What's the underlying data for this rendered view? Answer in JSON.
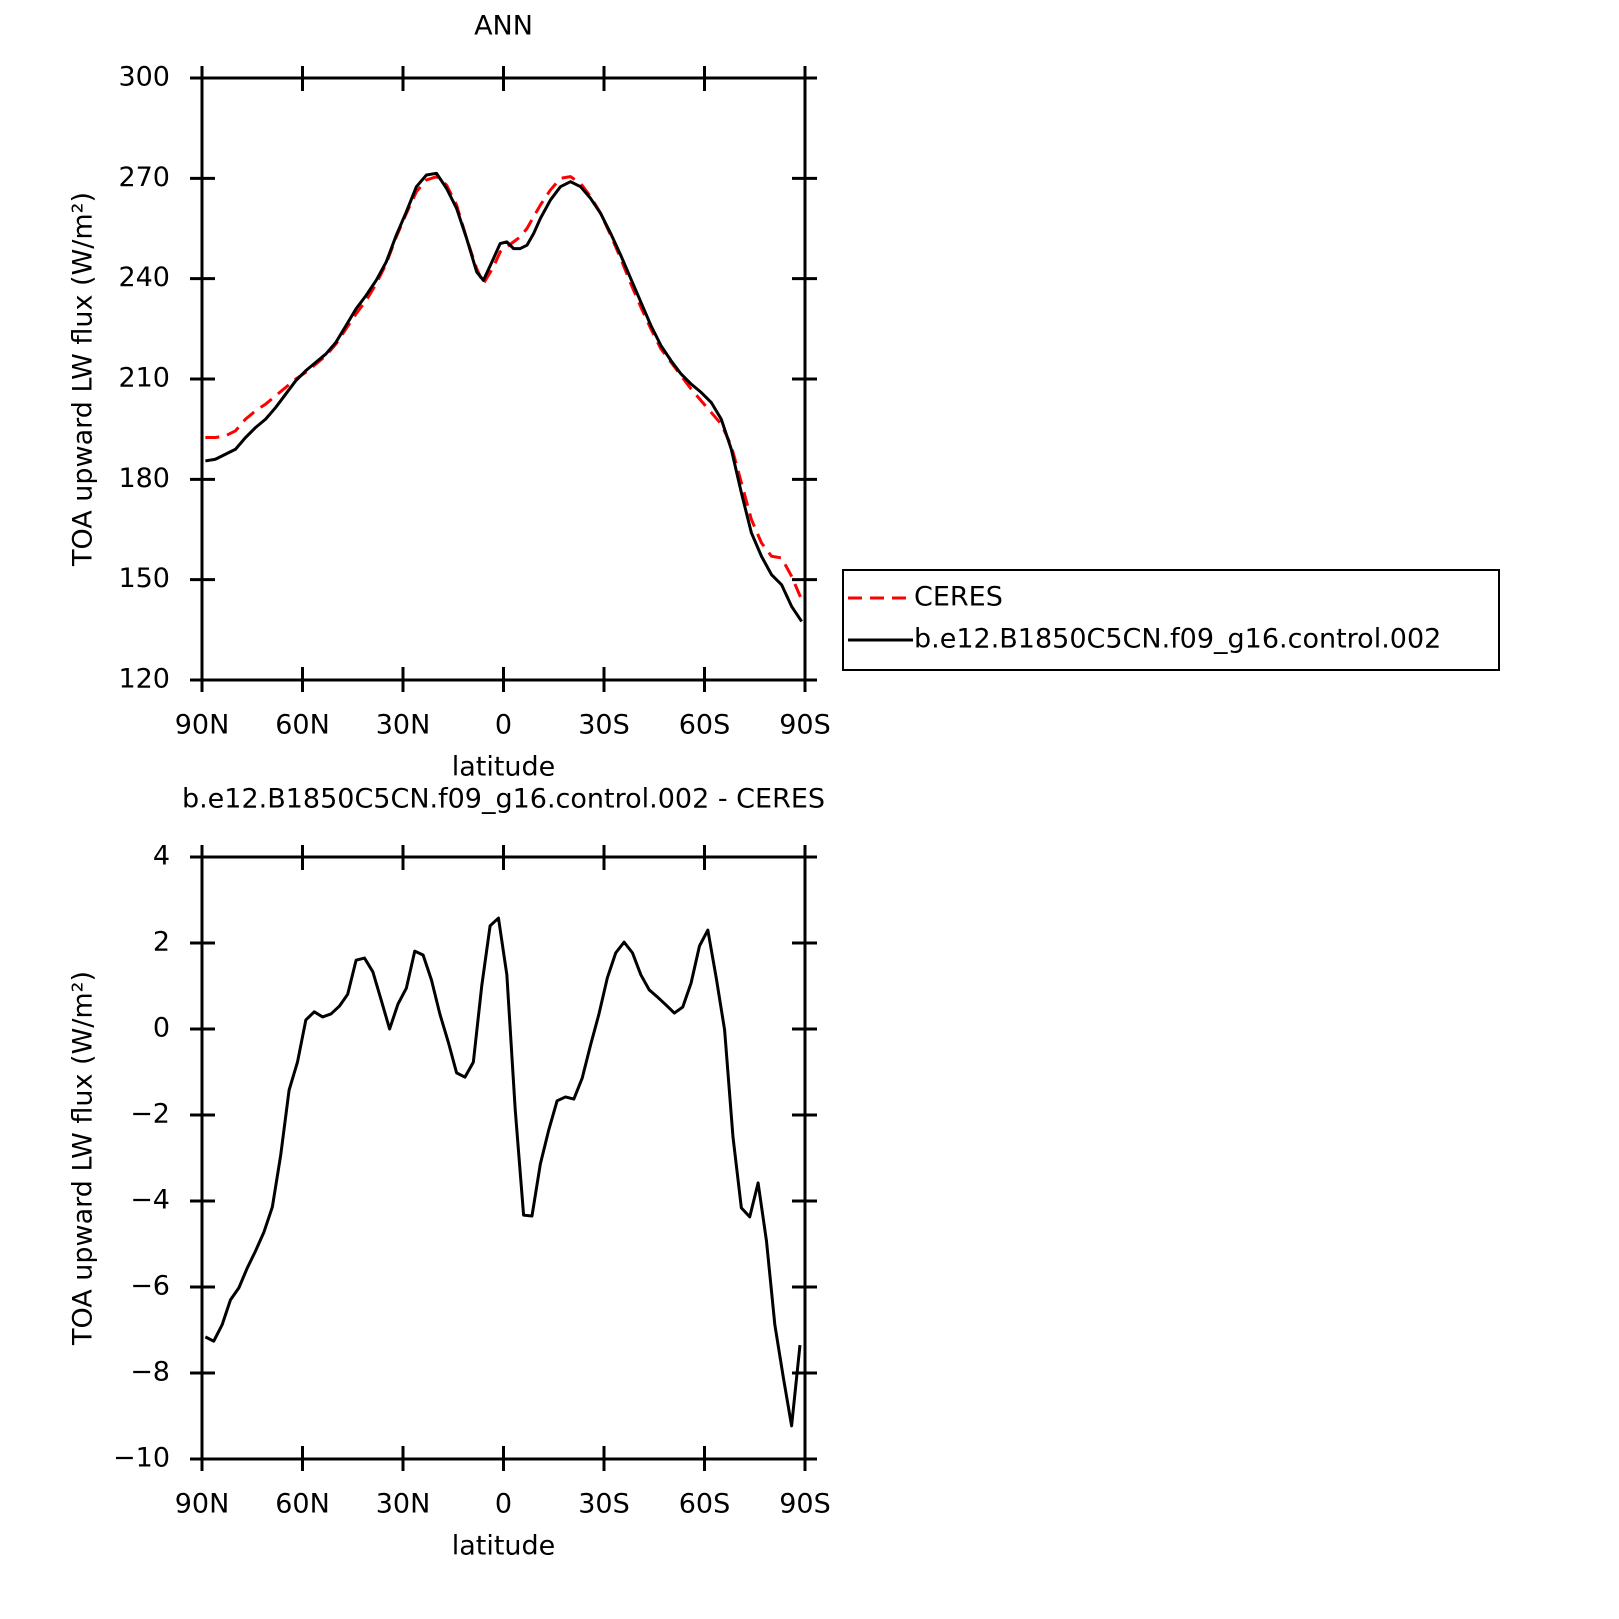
{
  "chart_data": [
    {
      "type": "line",
      "title": "ANN",
      "xlabel": "latitude",
      "ylabel": "TOA upward LW flux (W/m²)",
      "x": [
        89,
        86,
        83,
        80,
        77,
        74,
        71,
        68,
        65,
        62,
        59,
        56,
        53,
        50,
        47,
        44,
        41,
        38,
        35,
        32,
        29,
        26,
        23,
        20,
        17,
        14,
        11,
        8,
        6,
        3,
        1,
        -1,
        -3,
        -5,
        -7,
        -9,
        -11,
        -14,
        -17,
        -20,
        -23,
        -26,
        -29,
        -32,
        -35,
        -38,
        -41,
        -44,
        -47,
        -50,
        -53,
        -56,
        -59,
        -62,
        -65,
        -68,
        -71,
        -74,
        -77,
        -80,
        -83,
        -86,
        -89
      ],
      "series": [
        {
          "name": "CERES",
          "color": "#ff0000",
          "line_style": "dashed",
          "values": [
            192.5,
            192.5,
            193,
            194.5,
            198,
            200.5,
            202.5,
            205,
            207.5,
            210,
            212,
            214.5,
            217,
            220.5,
            225,
            229.5,
            233.5,
            238.5,
            244.5,
            252.5,
            259.5,
            266,
            269.5,
            270.5,
            268,
            262,
            252,
            243,
            238.5,
            243.5,
            248,
            249.5,
            251,
            252.5,
            255,
            258.5,
            262,
            266.5,
            270,
            270.5,
            268.5,
            264.5,
            259.5,
            253,
            246,
            238.5,
            231.5,
            225,
            219,
            215,
            211,
            207,
            203.5,
            200,
            196.5,
            190,
            179,
            168,
            161,
            157,
            156.5,
            151,
            144
          ]
        },
        {
          "name": "b.e12.B1850C5CN.f09_g16.control.002",
          "color": "#000000",
          "line_style": "solid",
          "values": [
            185.5,
            186,
            187.5,
            189,
            192.5,
            195.5,
            198,
            201.5,
            205.5,
            209.5,
            212.5,
            215,
            217.5,
            221,
            226,
            231,
            235,
            239.5,
            245,
            253,
            260,
            267.5,
            271,
            271.5,
            267,
            261,
            252,
            242,
            239.5,
            246,
            250.5,
            251,
            249,
            249,
            250,
            253.5,
            258,
            263.5,
            267.5,
            269,
            267.5,
            264,
            259.5,
            253.5,
            247,
            240,
            233,
            226,
            220,
            215.5,
            211.5,
            208.5,
            206,
            203,
            198,
            189,
            176,
            164,
            157,
            151.5,
            148.5,
            142,
            137.5
          ]
        }
      ],
      "xlim": [
        90,
        -90
      ],
      "xticks": [
        {
          "value": 90,
          "label": "90N"
        },
        {
          "value": 60,
          "label": "60N"
        },
        {
          "value": 30,
          "label": "30N"
        },
        0,
        {
          "value": -30,
          "label": "30S"
        },
        {
          "value": -60,
          "label": "60S"
        },
        {
          "value": -90,
          "label": "90S"
        }
      ],
      "ylim": [
        120,
        300
      ],
      "yticks": [
        120,
        150,
        180,
        210,
        240,
        270,
        300
      ],
      "legend": "right"
    },
    {
      "type": "line",
      "title": "b.e12.B1850C5CN.f09_g16.control.002 - CERES",
      "xlabel": "latitude",
      "ylabel": "TOA upward LW flux (W/m²)",
      "x": [
        89,
        86.5,
        84,
        81.5,
        79,
        76.5,
        74,
        71.5,
        69,
        66.5,
        64,
        61.5,
        59,
        56.5,
        54,
        51.5,
        49,
        46.5,
        44,
        41.5,
        39,
        36.5,
        34,
        31.5,
        29,
        26.5,
        24,
        21.5,
        19,
        16.5,
        14,
        11.5,
        9,
        6.5,
        4,
        1.5,
        -1,
        -3.5,
        -6,
        -8.5,
        -11,
        -13.5,
        -16,
        -18.5,
        -21,
        -23.5,
        -26,
        -28.5,
        -31,
        -33.5,
        -36,
        -38.5,
        -41,
        -43.5,
        -46,
        -48.5,
        -51,
        -53.5,
        -56,
        -58.5,
        -61,
        -63.5,
        -66,
        -68.5,
        -71,
        -73.5,
        -76,
        -78.5,
        -81,
        -83.5,
        -86,
        -88.5
      ],
      "series": [
        {
          "color": "#000000",
          "line_style": "solid",
          "values": [
            -7.16,
            -7.26,
            -6.88,
            -6.3,
            -6.02,
            -5.56,
            -5.16,
            -4.72,
            -4.14,
            -2.93,
            -1.42,
            -0.77,
            0.21,
            0.4,
            0.28,
            0.35,
            0.53,
            0.81,
            1.6,
            1.65,
            1.33,
            0.67,
            0.0,
            0.58,
            0.95,
            1.81,
            1.72,
            1.14,
            0.35,
            -0.3,
            -1.02,
            -1.12,
            -0.77,
            1.0,
            2.4,
            2.58,
            1.26,
            -1.88,
            -4.33,
            -4.35,
            -3.14,
            -2.35,
            -1.67,
            -1.58,
            -1.63,
            -1.14,
            -0.37,
            0.35,
            1.19,
            1.77,
            2.02,
            1.77,
            1.26,
            0.91,
            0.74,
            0.56,
            0.37,
            0.51,
            1.07,
            1.93,
            2.3,
            1.19,
            -0.02,
            -2.51,
            -4.16,
            -4.37,
            -3.58,
            -4.93,
            -6.88,
            -8.09,
            -9.23,
            -7.35
          ]
        }
      ],
      "xlim": [
        90,
        -90
      ],
      "xticks": [
        {
          "value": 90,
          "label": "90N"
        },
        {
          "value": 60,
          "label": "60N"
        },
        {
          "value": 30,
          "label": "30N"
        },
        0,
        {
          "value": -30,
          "label": "30S"
        },
        {
          "value": -60,
          "label": "60S"
        },
        {
          "value": -90,
          "label": "90S"
        }
      ],
      "ylim": [
        -10,
        4
      ],
      "yticks": [
        {
          "value": -10,
          "label": "−10"
        },
        {
          "value": -8,
          "label": "−8"
        },
        {
          "value": -6,
          "label": "−6"
        },
        {
          "value": -4,
          "label": "−4"
        },
        {
          "value": -2,
          "label": "−2"
        },
        0,
        2,
        4
      ]
    }
  ]
}
